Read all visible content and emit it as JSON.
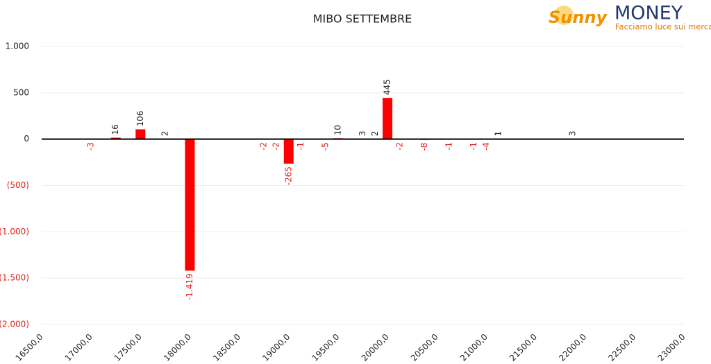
{
  "chart_data": {
    "type": "bar",
    "title": "MIBO SETTEMBRE",
    "logo": {
      "brand": "Sunny",
      "name": "MONEY",
      "tagline": "Facciamo luce sui mercati"
    },
    "x": [
      17000,
      17250,
      17500,
      17750,
      18000,
      18750,
      18875,
      19000,
      19125,
      19375,
      19500,
      19750,
      19875,
      20000,
      20125,
      20375,
      20625,
      20875,
      21000,
      21125,
      21875
    ],
    "values": [
      -3,
      16,
      106,
      2,
      -1419,
      -2,
      -2,
      -265,
      -1,
      -5,
      10,
      3,
      2,
      445,
      -2,
      -8,
      -1,
      -1,
      -4,
      1,
      3
    ],
    "value_labels": [
      "-3",
      "16",
      "106",
      "2",
      "-1.419",
      "-2",
      "-2",
      "-265",
      "-1",
      "-5",
      "10",
      "3",
      "2",
      "445",
      "-2",
      "-8",
      "-1",
      "-1",
      "-4",
      "1",
      "3"
    ],
    "color": "#ff0000",
    "xlim": [
      16500,
      23000
    ],
    "xticks": [
      {
        "value": 16500,
        "label": "16500,0"
      },
      {
        "value": 17000,
        "label": "17000,0"
      },
      {
        "value": 17500,
        "label": "17500,0"
      },
      {
        "value": 18000,
        "label": "18000,0"
      },
      {
        "value": 18500,
        "label": "18500,0"
      },
      {
        "value": 19000,
        "label": "19000,0"
      },
      {
        "value": 19500,
        "label": "19500,0"
      },
      {
        "value": 20000,
        "label": "20000,0"
      },
      {
        "value": 20500,
        "label": "20500,0"
      },
      {
        "value": 21000,
        "label": "21000,0"
      },
      {
        "value": 21500,
        "label": "21500,0"
      },
      {
        "value": 22000,
        "label": "22000,0"
      },
      {
        "value": 22500,
        "label": "22500,0"
      },
      {
        "value": 23000,
        "label": "23000,0"
      }
    ],
    "ylim": [
      -2000,
      1000
    ],
    "yticks": [
      {
        "value": 1000,
        "label": "1.000"
      },
      500,
      0,
      {
        "value": -500,
        "label": "(500)"
      },
      {
        "value": -1000,
        "label": "(1.000)"
      },
      {
        "value": -1500,
        "label": "(1.500)"
      },
      {
        "value": -2000,
        "label": "(2.000)"
      }
    ],
    "grid": true
  }
}
